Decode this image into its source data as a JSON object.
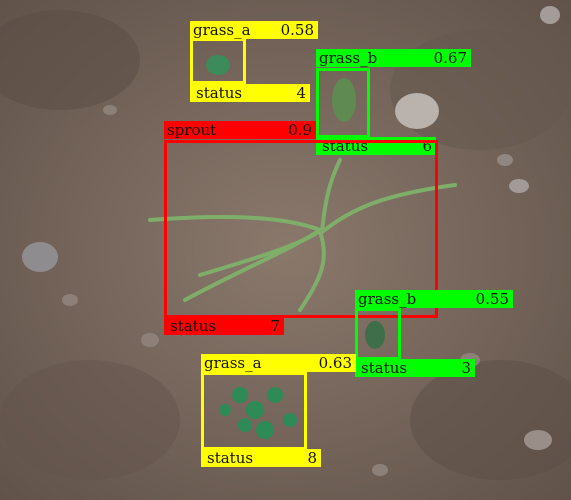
{
  "image": {
    "description_icon": "soil-field-photo"
  },
  "colors": {
    "grass_a": "#ffff00",
    "grass_b": "#00ff00",
    "sprout": "#ff0000"
  },
  "detections": [
    {
      "label": "grass_a",
      "score": "0.58",
      "status_label": "status",
      "status_value": "4"
    },
    {
      "label": "grass_b",
      "score": "0.67",
      "status_label": "status",
      "status_value": "6"
    },
    {
      "label": "sprout",
      "score": "0.9",
      "status_label": "status",
      "status_value": "7"
    },
    {
      "label": "grass_b",
      "score": "0.55",
      "status_label": "status",
      "status_value": "3"
    },
    {
      "label": "grass_a",
      "score": "0.63",
      "status_label": "status",
      "status_value": "8"
    }
  ]
}
